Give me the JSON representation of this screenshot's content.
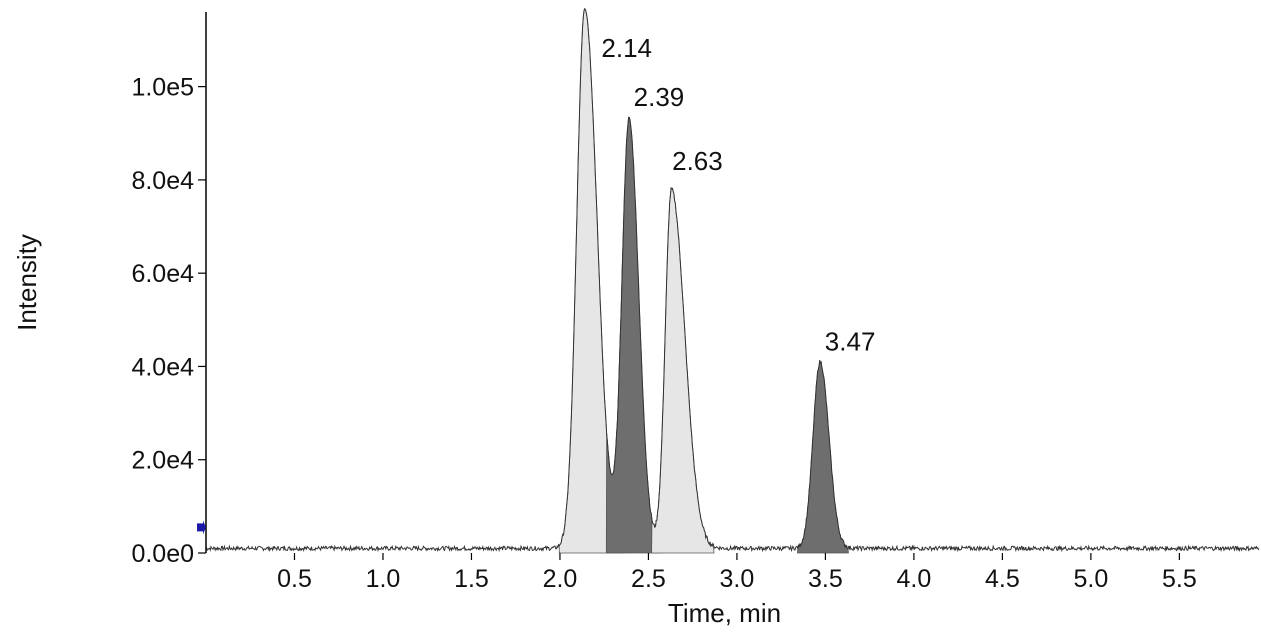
{
  "chart_data": {
    "type": "area",
    "title": "",
    "xlabel": "Time, min",
    "ylabel": "Intensity",
    "xlim": [
      0.0,
      5.95
    ],
    "ylim": [
      0,
      116000
    ],
    "x_ticks": [
      "0.5",
      "1.0",
      "1.5",
      "2.0",
      "2.5",
      "3.0",
      "3.5",
      "4.0",
      "4.5",
      "5.0",
      "5.5"
    ],
    "x_tick_values": [
      0.5,
      1.0,
      1.5,
      2.0,
      2.5,
      3.0,
      3.5,
      4.0,
      4.5,
      5.0,
      5.5
    ],
    "y_ticks": [
      "0.0e0",
      "2.0e4",
      "4.0e4",
      "6.0e4",
      "8.0e4",
      "1.0e5"
    ],
    "y_tick_values": [
      0,
      20000,
      40000,
      60000,
      80000,
      100000
    ],
    "grid": false,
    "baseline_level": 1000,
    "peaks": [
      {
        "rt": 2.14,
        "label": "2.14",
        "height": 116000,
        "fill": "#e6e6e6",
        "width_left": 0.045,
        "width_right": 0.07
      },
      {
        "rt": 2.39,
        "label": "2.39",
        "height": 92000,
        "fill": "#6e6e6e",
        "width_left": 0.04,
        "width_right": 0.055
      },
      {
        "rt": 2.63,
        "label": "2.63",
        "height": 77000,
        "fill": "#e6e6e6",
        "width_left": 0.035,
        "width_right": 0.075
      },
      {
        "rt": 3.47,
        "label": "3.47",
        "height": 40000,
        "fill": "#6e6e6e",
        "width_left": 0.04,
        "width_right": 0.05
      }
    ],
    "colors": {
      "trace": "#333333",
      "light_fill": "#e6e6e6",
      "dark_fill": "#6e6e6e",
      "marker": "#1a1aa6"
    }
  }
}
